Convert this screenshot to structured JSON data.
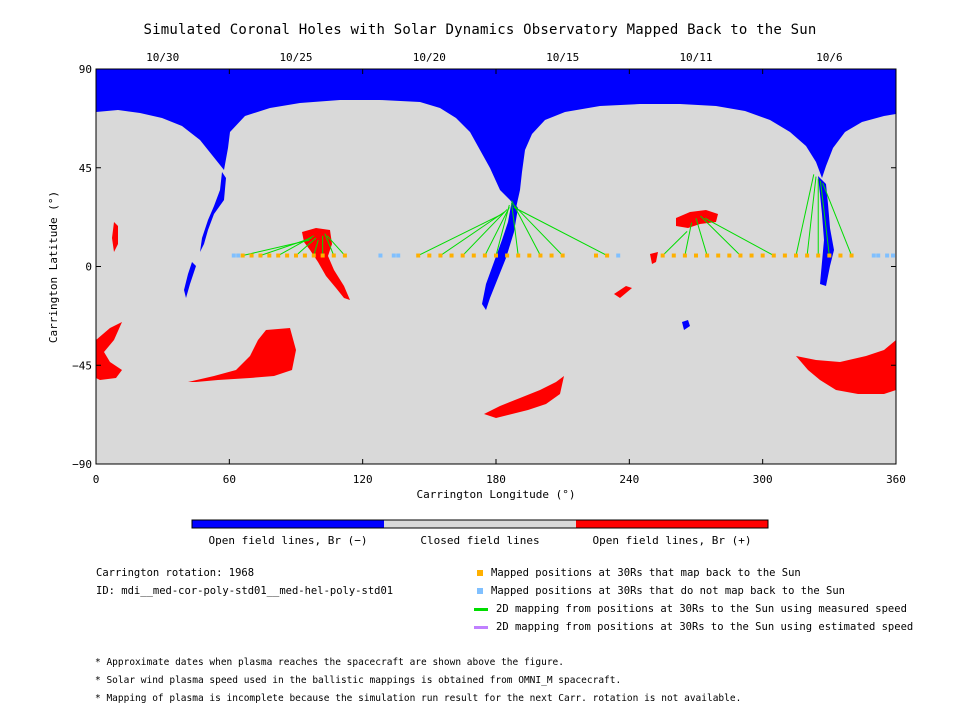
{
  "chart_data": {
    "type": "map",
    "title": "Simulated Coronal Holes with Solar Dynamics Observatory Mapped Back to the Sun",
    "xlabel": "Carrington Longitude (°)",
    "ylabel": "Carrington Latitude (°)",
    "xlim": [
      0,
      360
    ],
    "ylim": [
      -90,
      90
    ],
    "x_ticks": [
      0,
      60,
      120,
      180,
      240,
      300,
      360
    ],
    "y_ticks": [
      -90,
      -45,
      0,
      45,
      90
    ],
    "y_tick_labels": [
      "−90",
      "−45",
      "0",
      "45",
      "90"
    ],
    "top_dates": [
      {
        "label": "10/30",
        "lon": 30
      },
      {
        "label": "10/25",
        "lon": 90
      },
      {
        "label": "10/20",
        "lon": 150
      },
      {
        "label": "10/15",
        "lon": 210
      },
      {
        "label": "10/11",
        "lon": 270
      },
      {
        "label": "10/6",
        "lon": 330
      }
    ],
    "colors": {
      "open_negative": "#0000ff",
      "closed": "#d9d9d9",
      "open_positive": "#ff0000",
      "mapped": "#ffb000",
      "unmapped": "#80c0ff",
      "measured_speed": "#00dd00",
      "estimated_speed": "#c080ff"
    },
    "mapped_positions_lat": 5,
    "mapped_lons": [
      66,
      70,
      74,
      78,
      82,
      86,
      90,
      94,
      98,
      102,
      107,
      112,
      145,
      150,
      155,
      160,
      165,
      170,
      175,
      180,
      185,
      190,
      195,
      200,
      205,
      210,
      225,
      230,
      255,
      260,
      265,
      270,
      275,
      280,
      285,
      290,
      295,
      300,
      305,
      310,
      315,
      320,
      325,
      330,
      335,
      340
    ],
    "unmapped_lons": [
      62,
      64,
      128,
      134,
      136,
      350,
      352,
      356,
      360,
      235
    ],
    "mapping_lines": [
      {
        "from_lon": 66,
        "to": [
          96,
          12
        ]
      },
      {
        "from_lon": 74,
        "to": [
          97,
          13
        ]
      },
      {
        "from_lon": 82,
        "to": [
          98,
          14
        ]
      },
      {
        "from_lon": 90,
        "to": [
          99,
          13
        ]
      },
      {
        "from_lon": 98,
        "to": [
          100,
          12
        ]
      },
      {
        "from_lon": 102,
        "to": [
          102,
          14
        ]
      },
      {
        "from_lon": 107,
        "to": [
          103,
          15
        ]
      },
      {
        "from_lon": 112,
        "to": [
          104,
          14
        ]
      },
      {
        "from_lon": 145,
        "to": [
          183,
          24
        ]
      },
      {
        "from_lon": 155,
        "to": [
          184,
          25
        ]
      },
      {
        "from_lon": 165,
        "to": [
          185,
          26
        ]
      },
      {
        "from_lon": 175,
        "to": [
          186,
          27
        ]
      },
      {
        "from_lon": 180,
        "to": [
          186,
          28
        ]
      },
      {
        "from_lon": 190,
        "to": [
          187,
          29
        ]
      },
      {
        "from_lon": 200,
        "to": [
          187,
          30
        ]
      },
      {
        "from_lon": 210,
        "to": [
          188,
          28
        ]
      },
      {
        "from_lon": 230,
        "to": [
          188,
          27
        ]
      },
      {
        "from_lon": 255,
        "to": [
          266,
          16
        ]
      },
      {
        "from_lon": 265,
        "to": [
          268,
          20
        ]
      },
      {
        "from_lon": 275,
        "to": [
          270,
          22
        ]
      },
      {
        "from_lon": 290,
        "to": [
          272,
          23
        ]
      },
      {
        "from_lon": 305,
        "to": [
          274,
          22
        ]
      },
      {
        "from_lon": 315,
        "to": [
          323,
          42
        ]
      },
      {
        "from_lon": 320,
        "to": [
          324,
          41
        ]
      },
      {
        "from_lon": 325,
        "to": [
          325,
          40
        ]
      },
      {
        "from_lon": 330,
        "to": [
          326,
          39
        ]
      },
      {
        "from_lon": 340,
        "to": [
          327,
          38
        ]
      }
    ]
  },
  "colorbar": {
    "labels": [
      "Open field lines, Br (−)",
      "Closed field lines",
      "Open field lines, Br (+)"
    ]
  },
  "info": {
    "rotation": "Carrington rotation: 1968",
    "id": "ID: mdi__med-cor-poly-std01__med-hel-poly-std01"
  },
  "legend": [
    {
      "label": "Mapped positions at 30Rs that map back to the Sun",
      "kind": "square",
      "color": "#ffb000"
    },
    {
      "label": "Mapped positions at 30Rs that do not map back to the Sun",
      "kind": "square",
      "color": "#80c0ff"
    },
    {
      "label": "2D mapping from positions at 30Rs to the Sun using measured speed",
      "kind": "line",
      "color": "#00dd00"
    },
    {
      "label": "2D mapping from positions at 30Rs to the Sun using estimated speed",
      "kind": "line",
      "color": "#c080ff"
    }
  ],
  "notes": [
    "* Approximate dates when plasma reaches the spacecraft are shown above the figure.",
    "* Solar wind plasma speed used in the ballistic mappings is obtained from OMNI_M spacecraft.",
    "* Mapping of plasma is incomplete because the simulation run result for the next Carr. rotation is not available."
  ]
}
